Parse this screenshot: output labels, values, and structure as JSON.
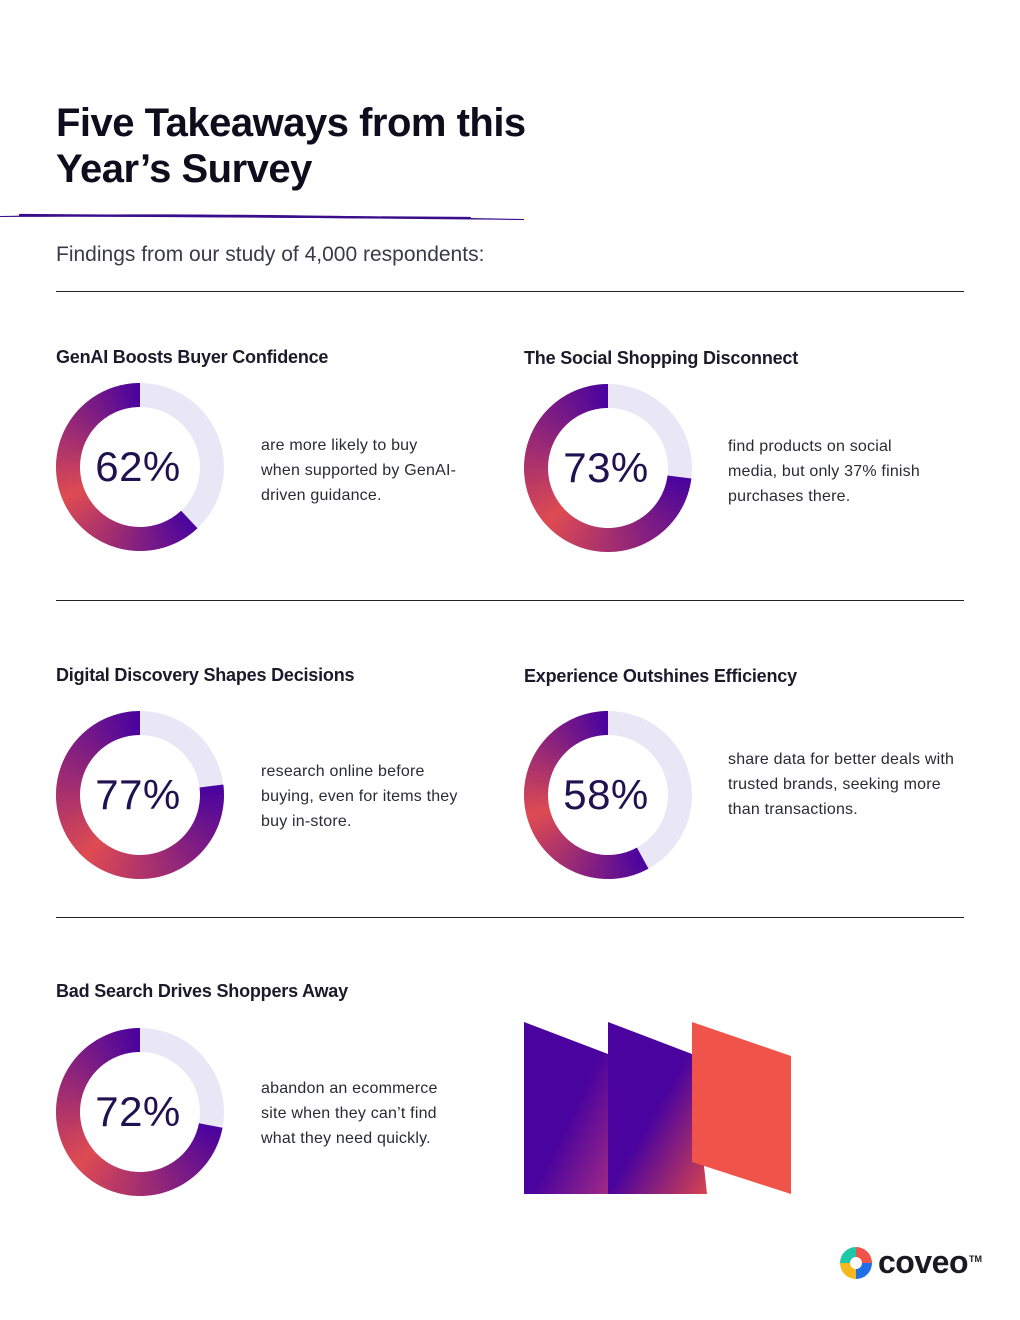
{
  "header": {
    "title": "Five Takeaways from this Year’s Survey",
    "subtitle": "Findings from our study of 4,000 respondents:"
  },
  "colors": {
    "ring_start": "#EF5349",
    "ring_end": "#4A039E",
    "ring_track": "#E9E6F5",
    "percent_text": "#1F1250"
  },
  "chart_data": [
    {
      "type": "donut",
      "title": "GenAI Boosts Buyer Confidence",
      "value": 62,
      "label": "62%",
      "description": "are more likely to buy when supported by GenAI-driven guidance."
    },
    {
      "type": "donut",
      "title": "The Social Shopping Disconnect",
      "value": 73,
      "label": "73%",
      "description": "find products on social media, but only 37% finish purchases there."
    },
    {
      "type": "donut",
      "title": "Digital Discovery Shapes Decisions",
      "value": 77,
      "label": "77%",
      "description": "research online before buying, even for items they buy in-store."
    },
    {
      "type": "donut",
      "title": "Experience Outshines Efficiency",
      "value": 58,
      "label": "58%",
      "description": "share data for better deals with trusted brands, seeking more than transactions."
    },
    {
      "type": "donut",
      "title": "Bad Search Drives Shoppers Away",
      "value": 72,
      "label": "72%",
      "description": "abandon an ecommerce site when they can’t find what they need quickly."
    }
  ],
  "footer": {
    "logo_text": "coveo",
    "logo_tm": "TM",
    "logo_icon": "coveo-pinwheel-icon"
  }
}
